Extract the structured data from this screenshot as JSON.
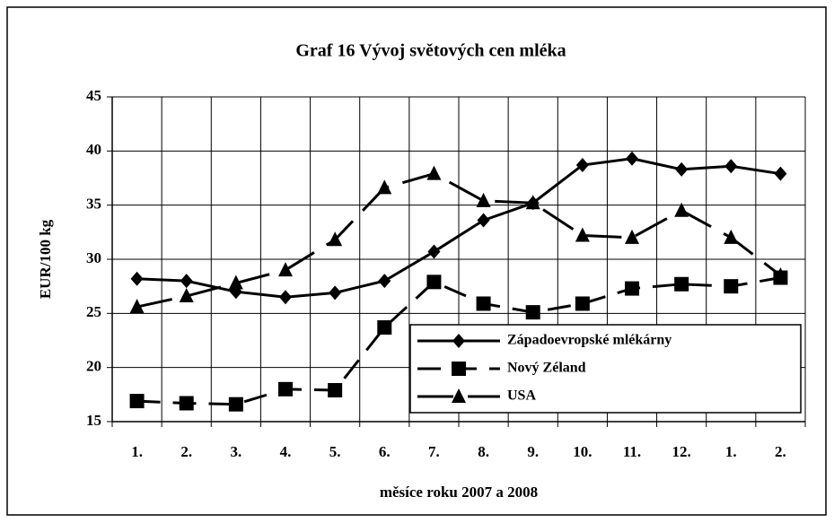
{
  "chart_data": {
    "type": "line",
    "title": "Graf 16 Vývoj světových cen mléka",
    "xlabel": "měsíce roku 2007 a 2008",
    "ylabel": "EUR/100 kg",
    "categories": [
      "1.",
      "2.",
      "3.",
      "4.",
      "5.",
      "6.",
      "7.",
      "8.",
      "9.",
      "10.",
      "11.",
      "12.",
      "1.",
      "2."
    ],
    "series": [
      {
        "name": "Západoevropské mlékárny",
        "color": "#000000",
        "marker": "diamond",
        "dash": "solid",
        "values": [
          28.2,
          28.0,
          27.0,
          26.5,
          26.9,
          28.0,
          30.7,
          33.6,
          35.2,
          38.7,
          39.3,
          38.3,
          38.6,
          37.9
        ]
      },
      {
        "name": "Nový Zéland",
        "color": "#000000",
        "marker": "square",
        "dash": "dashed",
        "values": [
          16.9,
          16.7,
          16.6,
          18.0,
          17.9,
          23.7,
          27.9,
          25.9,
          25.1,
          25.9,
          27.3,
          27.7,
          27.5,
          28.3
        ]
      },
      {
        "name": "USA",
        "color": "#000000",
        "marker": "triangle",
        "dash": "longdash",
        "values": [
          25.6,
          26.6,
          27.8,
          29.0,
          31.8,
          36.6,
          37.9,
          35.4,
          35.2,
          32.2,
          32.0,
          34.5,
          32.0,
          28.5
        ]
      }
    ],
    "ylim": [
      15,
      45
    ],
    "yticks": [
      15,
      20,
      25,
      30,
      35,
      40,
      45
    ],
    "grid": true,
    "legend": "lower right"
  }
}
